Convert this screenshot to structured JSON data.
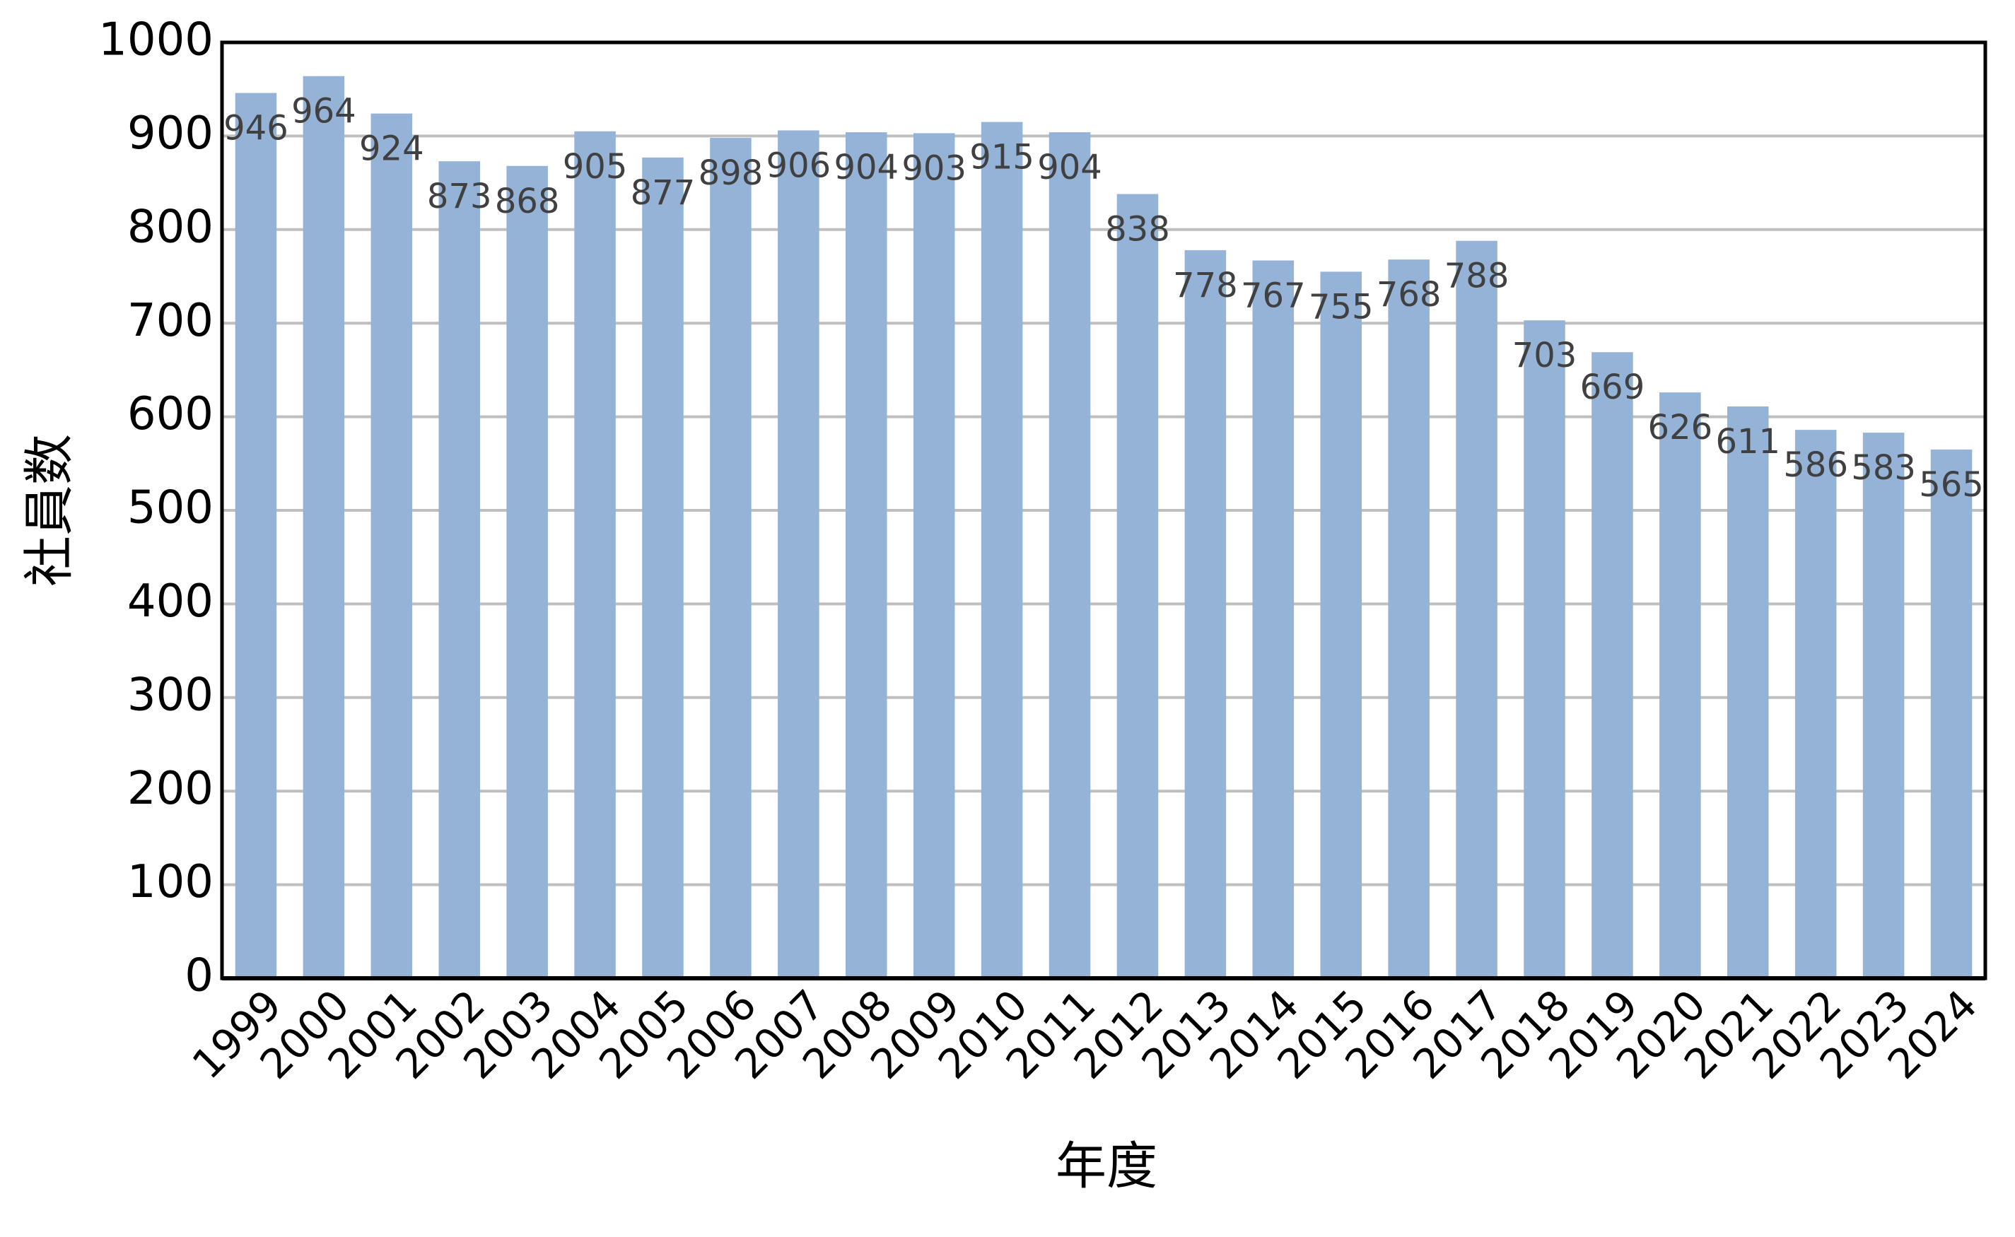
{
  "chart_data": {
    "type": "bar",
    "x_label": "年度",
    "y_label": "社員数",
    "categories": [
      "1999",
      "2000",
      "2001",
      "2002",
      "2003",
      "2004",
      "2005",
      "2006",
      "2007",
      "2008",
      "2009",
      "2010",
      "2011",
      "2012",
      "2013",
      "2014",
      "2015",
      "2016",
      "2017",
      "2018",
      "2019",
      "2020",
      "2021",
      "2022",
      "2023",
      "2024"
    ],
    "values": [
      946,
      964,
      924,
      873,
      868,
      905,
      877,
      898,
      906,
      904,
      903,
      915,
      904,
      838,
      778,
      767,
      755,
      768,
      788,
      703,
      669,
      626,
      611,
      586,
      583,
      565
    ],
    "color": "#95b3d7",
    "ylim": [
      0,
      1000
    ],
    "yticks": [
      0,
      100,
      200,
      300,
      400,
      500,
      600,
      700,
      800,
      900,
      1000
    ],
    "grid": true
  }
}
